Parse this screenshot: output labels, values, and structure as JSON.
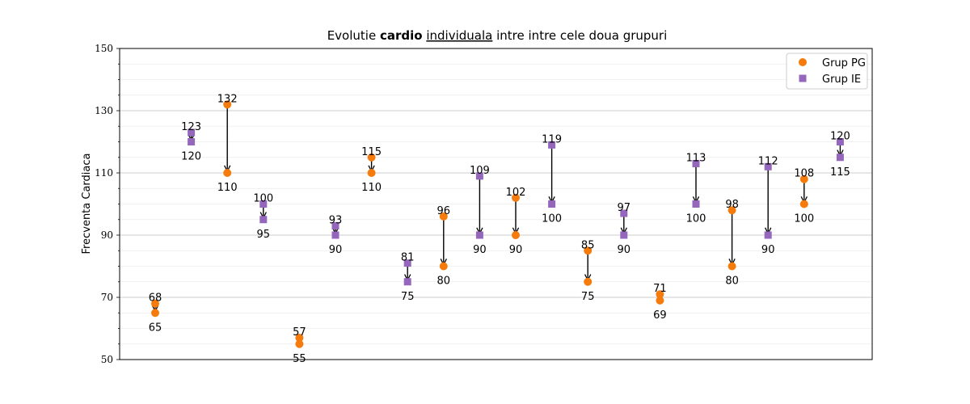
{
  "chart_data": {
    "type": "scatter",
    "title_parts": [
      {
        "text": "Evolutie ",
        "style": "normal"
      },
      {
        "text": "cardio",
        "style": "bold"
      },
      {
        "text": " ",
        "style": "normal"
      },
      {
        "text": "individuala",
        "style": "underline"
      },
      {
        "text": " intre intre cele doua grupuri",
        "style": "normal"
      }
    ],
    "ylabel": "Frecventa Cardiaca",
    "ylim": [
      50,
      150
    ],
    "yticks": [
      50,
      70,
      90,
      110,
      130,
      150
    ],
    "yticks_minor_step": 5,
    "grid": {
      "major": true,
      "minor": true
    },
    "legend": {
      "position": "top-right"
    },
    "colors": {
      "Grup PG": "#f57c0c",
      "Grup IE": "#9467bd"
    },
    "series": [
      {
        "name": "Grup PG",
        "marker": "circle"
      },
      {
        "name": "Grup IE",
        "marker": "square"
      }
    ],
    "points": [
      {
        "group": "Grup PG",
        "from": 68,
        "to": 65
      },
      {
        "group": "Grup IE",
        "from": 123,
        "to": 120
      },
      {
        "group": "Grup PG",
        "from": 132,
        "to": 110
      },
      {
        "group": "Grup IE",
        "from": 100,
        "to": 95
      },
      {
        "group": "Grup PG",
        "from": 57,
        "to": 55
      },
      {
        "group": "Grup IE",
        "from": 93,
        "to": 90
      },
      {
        "group": "Grup PG",
        "from": 115,
        "to": 110
      },
      {
        "group": "Grup IE",
        "from": 81,
        "to": 75
      },
      {
        "group": "Grup PG",
        "from": 96,
        "to": 80
      },
      {
        "group": "Grup IE",
        "from": 109,
        "to": 90
      },
      {
        "group": "Grup PG",
        "from": 102,
        "to": 90
      },
      {
        "group": "Grup IE",
        "from": 119,
        "to": 100
      },
      {
        "group": "Grup PG",
        "from": 85,
        "to": 75
      },
      {
        "group": "Grup IE",
        "from": 97,
        "to": 90
      },
      {
        "group": "Grup PG",
        "from": 71,
        "to": 69
      },
      {
        "group": "Grup IE",
        "from": 113,
        "to": 100
      },
      {
        "group": "Grup PG",
        "from": 98,
        "to": 80
      },
      {
        "group": "Grup IE",
        "from": 112,
        "to": 90
      },
      {
        "group": "Grup PG",
        "from": 108,
        "to": 100
      },
      {
        "group": "Grup IE",
        "from": 120,
        "to": 115
      }
    ]
  }
}
